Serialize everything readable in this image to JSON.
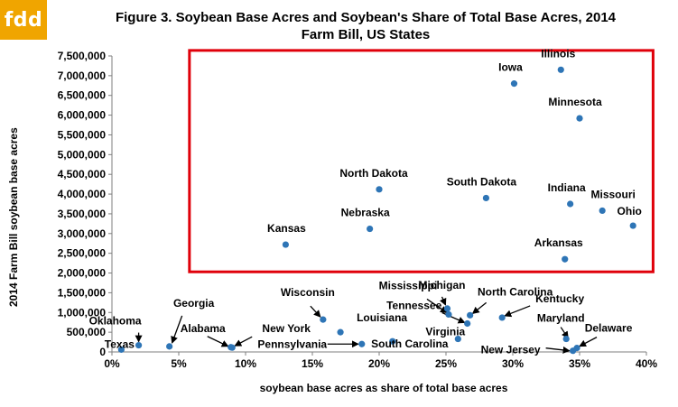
{
  "logo": {
    "text": "fdd",
    "color": "#f0a500"
  },
  "chart_data": {
    "type": "scatter",
    "title_line1": "Figure 3. Soybean Base Acres and Soybean's Share of Total Base Acres, 2014",
    "title_line2": "Farm Bill, US States",
    "xlabel": "soybean base acres as share of total base acres",
    "ylabel": "2014 Farm Bill soybean base acres",
    "xlim": [
      0,
      0.4
    ],
    "ylim": [
      0,
      7500000
    ],
    "x_ticks": [
      0,
      0.05,
      0.1,
      0.15,
      0.2,
      0.25,
      0.3,
      0.35,
      0.4
    ],
    "x_tick_labels": [
      "0%",
      "5%",
      "10%",
      "15%",
      "20%",
      "25%",
      "30%",
      "35%",
      "40%"
    ],
    "y_ticks": [
      0,
      500000,
      1000000,
      1500000,
      2000000,
      2500000,
      3000000,
      3500000,
      4000000,
      4500000,
      5000000,
      5500000,
      6000000,
      6500000,
      7000000,
      7500000
    ],
    "y_tick_labels": [
      "0",
      "500,000",
      "1,000,000",
      "1,500,000",
      "2,000,000",
      "2,500,000",
      "3,000,000",
      "3,500,000",
      "4,000,000",
      "4,500,000",
      "5,000,000",
      "5,500,000",
      "6,000,000",
      "6,500,000",
      "7,000,000",
      "7,500,000"
    ],
    "grid": false,
    "point_color": "#2e75b6",
    "highlight_box_color": "#e0000a",
    "highlight_box_range": {
      "x": [
        0.058,
        0.405
      ],
      "y": [
        2030000,
        7640000
      ]
    },
    "points": [
      {
        "label": "Illinois",
        "x": 0.336,
        "y": 7150000
      },
      {
        "label": "Iowa",
        "x": 0.301,
        "y": 6800000
      },
      {
        "label": "Minnesota",
        "x": 0.35,
        "y": 5920000
      },
      {
        "label": "North Dakota",
        "x": 0.2,
        "y": 4120000
      },
      {
        "label": "South Dakota",
        "x": 0.28,
        "y": 3900000
      },
      {
        "label": "Indiana",
        "x": 0.343,
        "y": 3750000
      },
      {
        "label": "Missouri",
        "x": 0.367,
        "y": 3580000
      },
      {
        "label": "Ohio",
        "x": 0.39,
        "y": 3200000
      },
      {
        "label": "Nebraska",
        "x": 0.193,
        "y": 3120000
      },
      {
        "label": "Kansas",
        "x": 0.13,
        "y": 2720000
      },
      {
        "label": "Arkansas",
        "x": 0.339,
        "y": 2350000
      },
      {
        "label": "Michigan",
        "x": 0.251,
        "y": 1100000
      },
      {
        "label": "Mississippi",
        "x": 0.252,
        "y": 950000
      },
      {
        "label": "North Carolina",
        "x": 0.268,
        "y": 930000
      },
      {
        "label": "Kentucky",
        "x": 0.292,
        "y": 870000
      },
      {
        "label": "Wisconsin",
        "x": 0.158,
        "y": 820000
      },
      {
        "label": "Tennessee",
        "x": 0.266,
        "y": 720000
      },
      {
        "label": "Louisiana",
        "x": 0.171,
        "y": 500000
      },
      {
        "label": "Maryland",
        "x": 0.34,
        "y": 330000
      },
      {
        "label": "Virginia",
        "x": 0.259,
        "y": 330000
      },
      {
        "label": "South Carolina",
        "x": 0.21,
        "y": 270000
      },
      {
        "label": "Pennsylvania",
        "x": 0.187,
        "y": 200000
      },
      {
        "label": "Oklahoma",
        "x": 0.02,
        "y": 170000
      },
      {
        "label": "Georgia",
        "x": 0.043,
        "y": 140000
      },
      {
        "label": "Alabama",
        "x": 0.089,
        "y": 120000
      },
      {
        "label": "New York",
        "x": 0.09,
        "y": 110000
      },
      {
        "label": "Delaware",
        "x": 0.348,
        "y": 100000
      },
      {
        "label": "New Jersey",
        "x": 0.345,
        "y": 30000
      },
      {
        "label": "Texas",
        "x": 0.007,
        "y": 60000
      }
    ]
  }
}
